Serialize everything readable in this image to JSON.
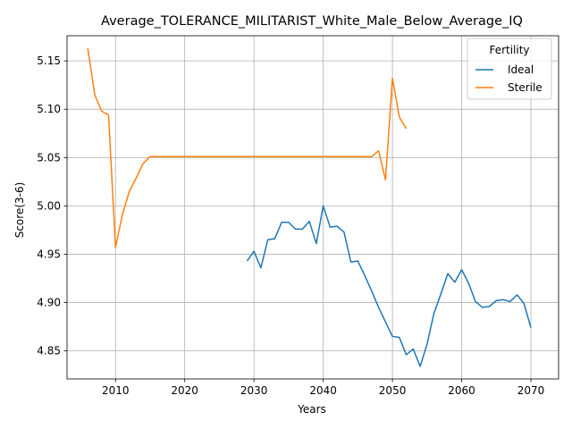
{
  "chart_data": {
    "type": "line",
    "title": "Average_TOLERANCE_MILITARIST_White_Male_Below_Average_IQ",
    "xlabel": "Years",
    "ylabel": "Score(3-6)",
    "xlim": [
      2003,
      2074
    ],
    "ylim": [
      4.821,
      5.176
    ],
    "xticks": [
      2010,
      2020,
      2030,
      2040,
      2050,
      2060,
      2070
    ],
    "xtick_labels": [
      "2010",
      "2020",
      "2030",
      "2040",
      "2050",
      "2060",
      "2070"
    ],
    "yticks": [
      4.85,
      4.9,
      4.95,
      5.0,
      5.05,
      5.1,
      5.15
    ],
    "ytick_labels": [
      "4.85",
      "4.90",
      "4.95",
      "5.00",
      "5.05",
      "5.10",
      "5.15"
    ],
    "grid": true,
    "legend": {
      "title": "Fertility",
      "placement": "top-right"
    },
    "series": [
      {
        "name": "Ideal",
        "color": "#1f77b4",
        "x": [
          2029,
          2030,
          2031,
          2032,
          2033,
          2034,
          2035,
          2036,
          2037,
          2038,
          2039,
          2040,
          2041,
          2042,
          2043,
          2044,
          2045,
          2046,
          2047,
          2048,
          2049,
          2050,
          2051,
          2052,
          2053,
          2054,
          2055,
          2056,
          2057,
          2058,
          2059,
          2060,
          2061,
          2062,
          2063,
          2064,
          2065,
          2066,
          2067,
          2068,
          2069,
          2070
        ],
        "y": [
          4.943,
          4.953,
          4.936,
          4.965,
          4.966,
          4.983,
          4.983,
          4.976,
          4.976,
          4.984,
          4.961,
          5.0,
          4.978,
          4.979,
          4.973,
          4.942,
          4.943,
          4.928,
          4.912,
          4.895,
          4.88,
          4.865,
          4.864,
          4.846,
          4.852,
          4.834,
          4.857,
          4.889,
          4.909,
          4.93,
          4.921,
          4.934,
          4.92,
          4.901,
          4.895,
          4.896,
          4.902,
          4.903,
          4.901,
          4.908,
          4.899,
          4.874
        ]
      },
      {
        "name": "Sterile",
        "color": "#ff7f0e",
        "x": [
          2006,
          2007,
          2008,
          2009,
          2010,
          2011,
          2012,
          2013,
          2014,
          2015,
          2016,
          2017,
          2018,
          2019,
          2020,
          2021,
          2022,
          2023,
          2024,
          2025,
          2026,
          2027,
          2028,
          2029,
          2030,
          2031,
          2032,
          2033,
          2034,
          2035,
          2036,
          2037,
          2038,
          2039,
          2040,
          2041,
          2042,
          2043,
          2044,
          2045,
          2046,
          2047,
          2048,
          2049,
          2050,
          2051,
          2052
        ],
        "y": [
          5.163,
          5.115,
          5.098,
          5.094,
          4.957,
          4.991,
          5.015,
          5.029,
          5.044,
          5.051,
          5.051,
          5.051,
          5.051,
          5.051,
          5.051,
          5.051,
          5.051,
          5.051,
          5.051,
          5.051,
          5.051,
          5.051,
          5.051,
          5.051,
          5.051,
          5.051,
          5.051,
          5.051,
          5.051,
          5.051,
          5.051,
          5.051,
          5.051,
          5.051,
          5.051,
          5.051,
          5.051,
          5.051,
          5.051,
          5.051,
          5.051,
          5.051,
          5.057,
          5.027,
          5.132,
          5.092,
          5.08
        ]
      }
    ]
  }
}
